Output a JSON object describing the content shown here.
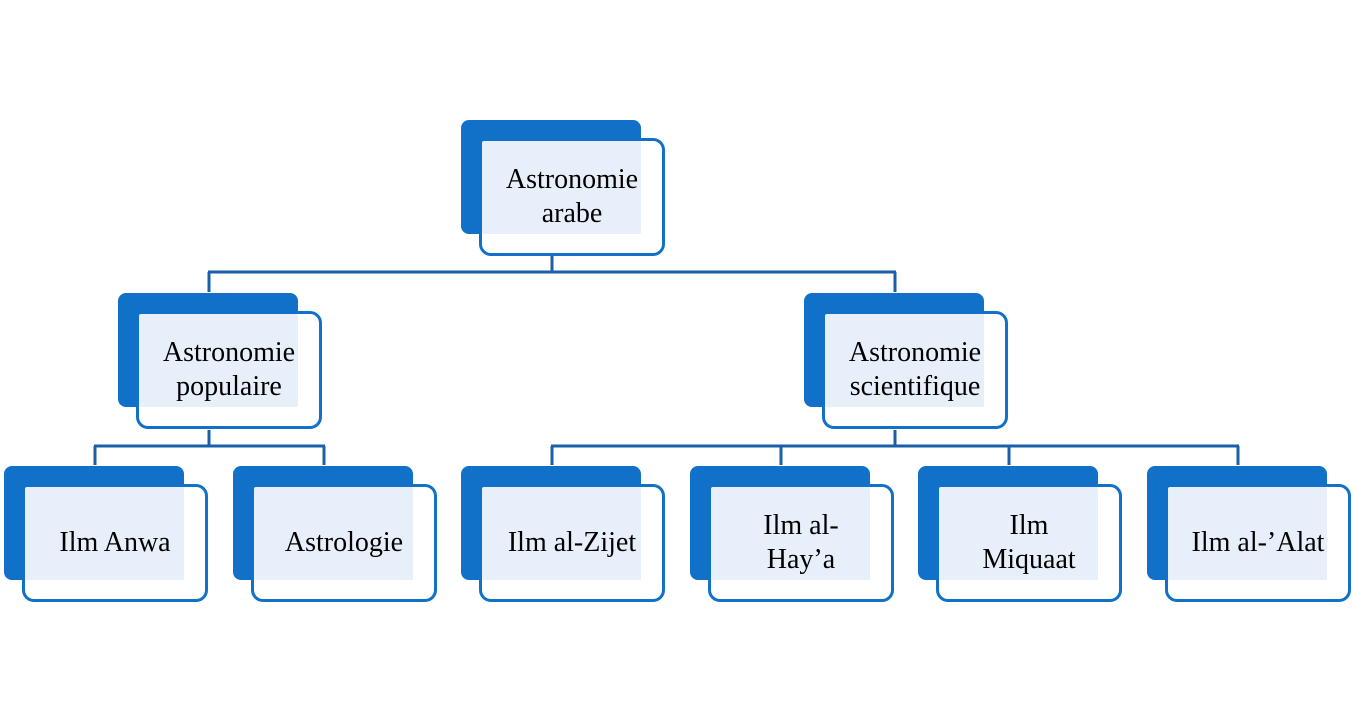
{
  "diagram": {
    "root": {
      "label": "Astronomie\narabe"
    },
    "popular": {
      "label": "Astronomie\npopulaire"
    },
    "scientific": {
      "label": "Astronomie\nscientifique"
    },
    "anwa": {
      "label": "Ilm Anwa"
    },
    "astrologie": {
      "label": "Astrologie"
    },
    "zijet": {
      "label": "Ilm al-Zijet"
    },
    "haya": {
      "label": "Ilm al-\nHay’a"
    },
    "miquaat": {
      "label": "Ilm\nMiquaat"
    },
    "alat": {
      "label": "Ilm al-’Alat"
    }
  },
  "colors": {
    "accent": "#1170c8",
    "connector": "#1a5fa8",
    "fill": "#e7f0fa"
  }
}
